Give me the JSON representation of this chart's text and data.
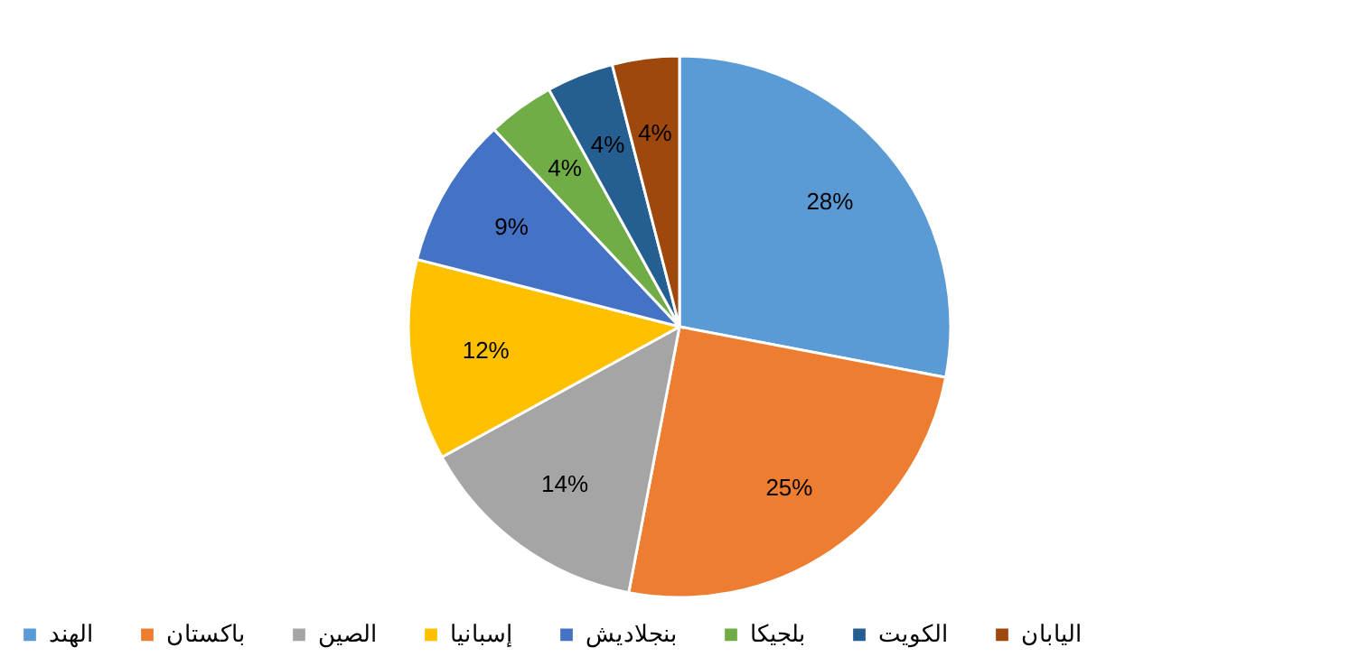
{
  "chart_data": {
    "type": "pie",
    "categories": [
      "الهند",
      "باكستان",
      "الصين",
      "إسبانيا",
      "بنجلاديش",
      "بلجيكا",
      "الكويت",
      "اليابان"
    ],
    "values": [
      28,
      25,
      14,
      12,
      9,
      4,
      4,
      4
    ],
    "colors": [
      "#5b9bd5",
      "#ed7d31",
      "#a5a5a5",
      "#ffc000",
      "#4472c4",
      "#70ad47",
      "#255e91",
      "#9e480e"
    ],
    "value_labels": [
      "28%",
      "25%",
      "14%",
      "12%",
      "9%",
      "4%",
      "4%",
      "4%"
    ],
    "legend": "bottom"
  }
}
